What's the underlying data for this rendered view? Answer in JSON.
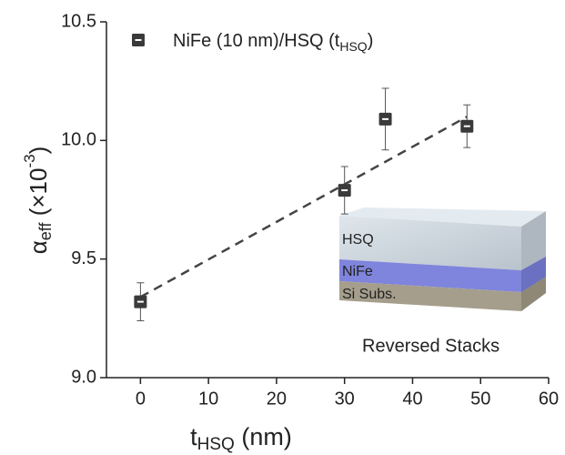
{
  "chart_data": {
    "type": "scatter",
    "xlabel": [
      "t",
      "HSQ",
      " (nm)"
    ],
    "ylabel": [
      "α",
      "eff",
      " (×10",
      "-3",
      ")"
    ],
    "series": [
      {
        "name": [
          "NiFe (10 nm)/HSQ (t",
          "HSQ",
          ")"
        ],
        "color": "#3a3a3a",
        "x": [
          0,
          30,
          36,
          48
        ],
        "values": [
          9.32,
          9.79,
          10.09,
          10.06
        ],
        "errors": [
          0.08,
          0.1,
          0.13,
          0.09
        ]
      }
    ],
    "fit": {
      "x": [
        0,
        48
      ],
      "y": [
        9.34,
        10.1
      ],
      "color": "#444444"
    },
    "xlim": [
      -5,
      60
    ],
    "xticks": [
      0,
      10,
      20,
      30,
      40,
      50,
      60
    ],
    "ylim": [
      9.0,
      10.5
    ],
    "yticks": [
      {
        "value": 9.0,
        "label": "9.0"
      },
      9.5,
      {
        "value": 10.0,
        "label": "10.0"
      },
      10.5
    ],
    "inset_labels": [
      "HSQ",
      "NiFe",
      "Si Subs."
    ],
    "annotation": "Reversed Stacks"
  }
}
